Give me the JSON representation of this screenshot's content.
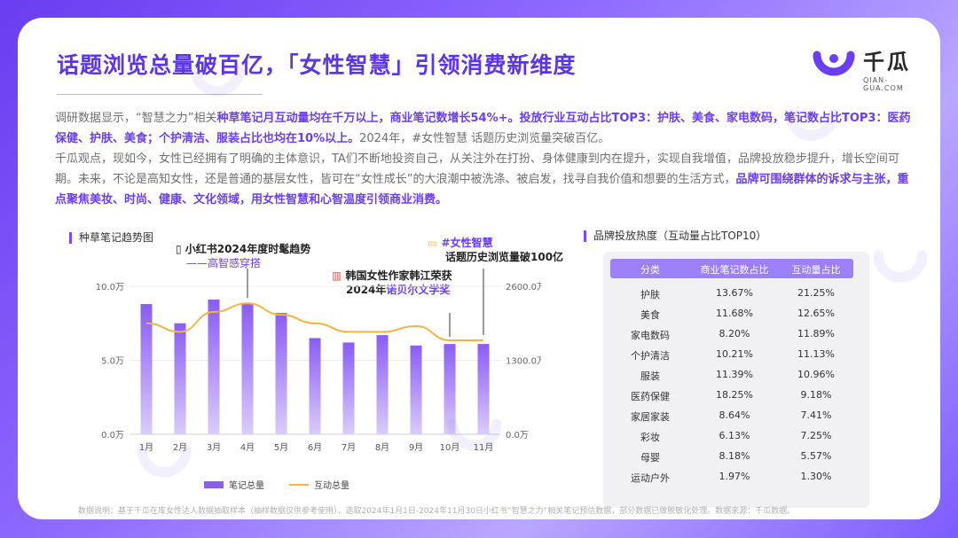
{
  "header": {
    "title": "话题浏览总量破百亿，「女性智慧」引领消费新维度",
    "logo_text": "千瓜",
    "logo_sub": "QIAN-GUA.COM"
  },
  "colors": {
    "accent": "#6a3ef2",
    "bar": "#8a5cf6",
    "line": "#f5b53d",
    "table_header": "#9b80f7"
  },
  "paragraphs": {
    "p1": [
      {
        "t": "调研数据显示，“智慧之力”相关",
        "hl": false
      },
      {
        "t": "种草笔记月互动量均在千万以上，商业笔记数增长54%+。投放行业互动占比TOP3：护肤、美食、家电数码，笔记数占比TOP3：医药保健、护肤、美食；个护清洁、服装占比也均在10%以上。",
        "hl": true
      },
      {
        "t": "2024年，#女性智慧 话题历史浏览量突破百亿。",
        "hl": false
      }
    ],
    "p2": [
      {
        "t": "千瓜观点，现如今，女性已经拥有了明确的主体意识，TA们不断地投资自己，从关注外在打扮、身体健康到内在提升，实现自我增值，品牌投放稳步提升，增长空间可期。未来，不论是高知女性，还是普通的基层女性，皆可在“女性成长”的大浪潮中被洗涤、被启发，找寻自我价值和想要的生活方式，",
        "hl": false
      },
      {
        "t": "品牌可围绕群体的诉求与主张，重点聚焦美妆、时尚、健康、文化领域，用女性智慧和心智温度引领商业消费。",
        "hl": true
      }
    ]
  },
  "chart_section_title": "种草笔记趋势图",
  "table_section_title": "品牌投放热度（互动量占比TOP10）",
  "annotations": {
    "a1_line1": "小红书2024年度时髦趋势",
    "a1_line2": "——高智感穿搭",
    "a2_line1": "韩国女性作家韩江荣获",
    "a2_line2_a": "2024年",
    "a2_line2_b": "诺贝尔文学奖",
    "a3_line1": "#女性智慧",
    "a3_line2": "话题历史浏览量破100亿"
  },
  "chart_data": {
    "type": "bar+line",
    "categories": [
      "1月",
      "2月",
      "3月",
      "4月",
      "5月",
      "6月",
      "7月",
      "8月",
      "9月",
      "10月",
      "11月"
    ],
    "series": [
      {
        "name": "笔记总量",
        "type": "bar",
        "axis": "left",
        "values": [
          8.8,
          7.5,
          9.1,
          8.8,
          8.2,
          6.5,
          6.2,
          6.7,
          6.0,
          6.1,
          6.1
        ]
      },
      {
        "name": "互动总量",
        "type": "line",
        "axis": "right",
        "values": [
          1950,
          1800,
          2150,
          2300,
          2100,
          1950,
          1800,
          1800,
          1900,
          1650,
          1650
        ]
      }
    ],
    "y_left_ticks": [
      "0.0万",
      "5.0万",
      "10.0万"
    ],
    "y_left_range": [
      0,
      10
    ],
    "y_right_ticks": [
      "0.0万",
      "1300.0万",
      "2600.0万"
    ],
    "y_right_range": [
      0,
      2600
    ],
    "legend": [
      "笔记总量",
      "互动总量"
    ],
    "legend_position": "bottom"
  },
  "table": {
    "headers": [
      "分类",
      "商业笔记数占比",
      "互动量占比"
    ],
    "rows": [
      [
        "护肤",
        "13.67%",
        "21.25%"
      ],
      [
        "美食",
        "11.68%",
        "12.65%"
      ],
      [
        "家电数码",
        "8.20%",
        "11.89%"
      ],
      [
        "个护清洁",
        "10.21%",
        "11.13%"
      ],
      [
        "服装",
        "11.39%",
        "10.96%"
      ],
      [
        "医药保健",
        "18.25%",
        "9.18%"
      ],
      [
        "家居家装",
        "8.64%",
        "7.41%"
      ],
      [
        "彩妆",
        "6.13%",
        "7.25%"
      ],
      [
        "母婴",
        "8.18%",
        "5.57%"
      ],
      [
        "运动户外",
        "1.97%",
        "1.30%"
      ]
    ]
  },
  "footnote": "数据说明：基于千瓜在库女性达人数据抽取样本（抽样数据仅供参考使用），选取2024年1月1日-2024年11月30日小红书“智慧之力”相关笔记预估数据，部分数据已做脱敏化处理。数据来源：千瓜数据。"
}
